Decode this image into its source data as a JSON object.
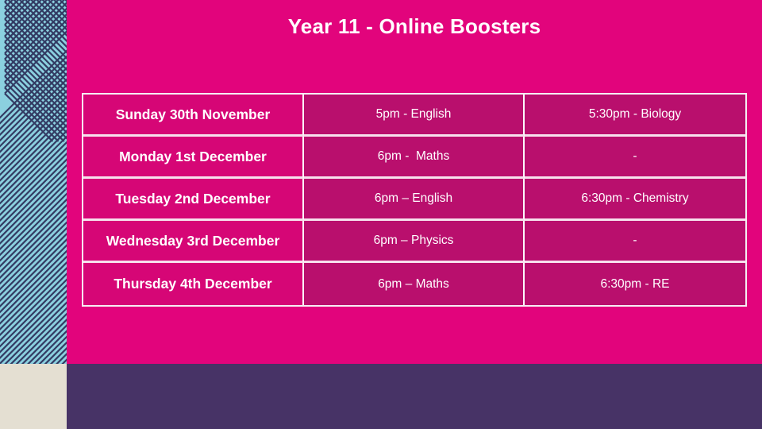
{
  "slide": {
    "title": "Year 11 - Online Boosters"
  },
  "schedule": {
    "rows": [
      {
        "date": "Sunday 30th November",
        "session1": "5pm - English",
        "session2": "5:30pm - Biology"
      },
      {
        "date": "Monday 1st December",
        "session1": "6pm -  Maths",
        "session2": "-"
      },
      {
        "date": "Tuesday 2nd December",
        "session1": "6pm – English",
        "session2": "6:30pm - Chemistry"
      },
      {
        "date": "Wednesday 3rd December",
        "session1": "6pm – Physics",
        "session2": "-"
      },
      {
        "date": "Thursday 4th December",
        "session1": "6pm – Maths",
        "session2": "6:30pm - RE"
      }
    ]
  },
  "colors": {
    "background_magenta": "#E2047C",
    "date_cell_magenta": "#D60676",
    "session_cell_magenta": "#B90F6D",
    "sidebar_teal": "#8BD0DF",
    "sidebar_line_navy": "#333B63",
    "footer_purple": "#473366",
    "corner_beige": "#E4DFD2",
    "text_white": "#FFFFFF"
  }
}
